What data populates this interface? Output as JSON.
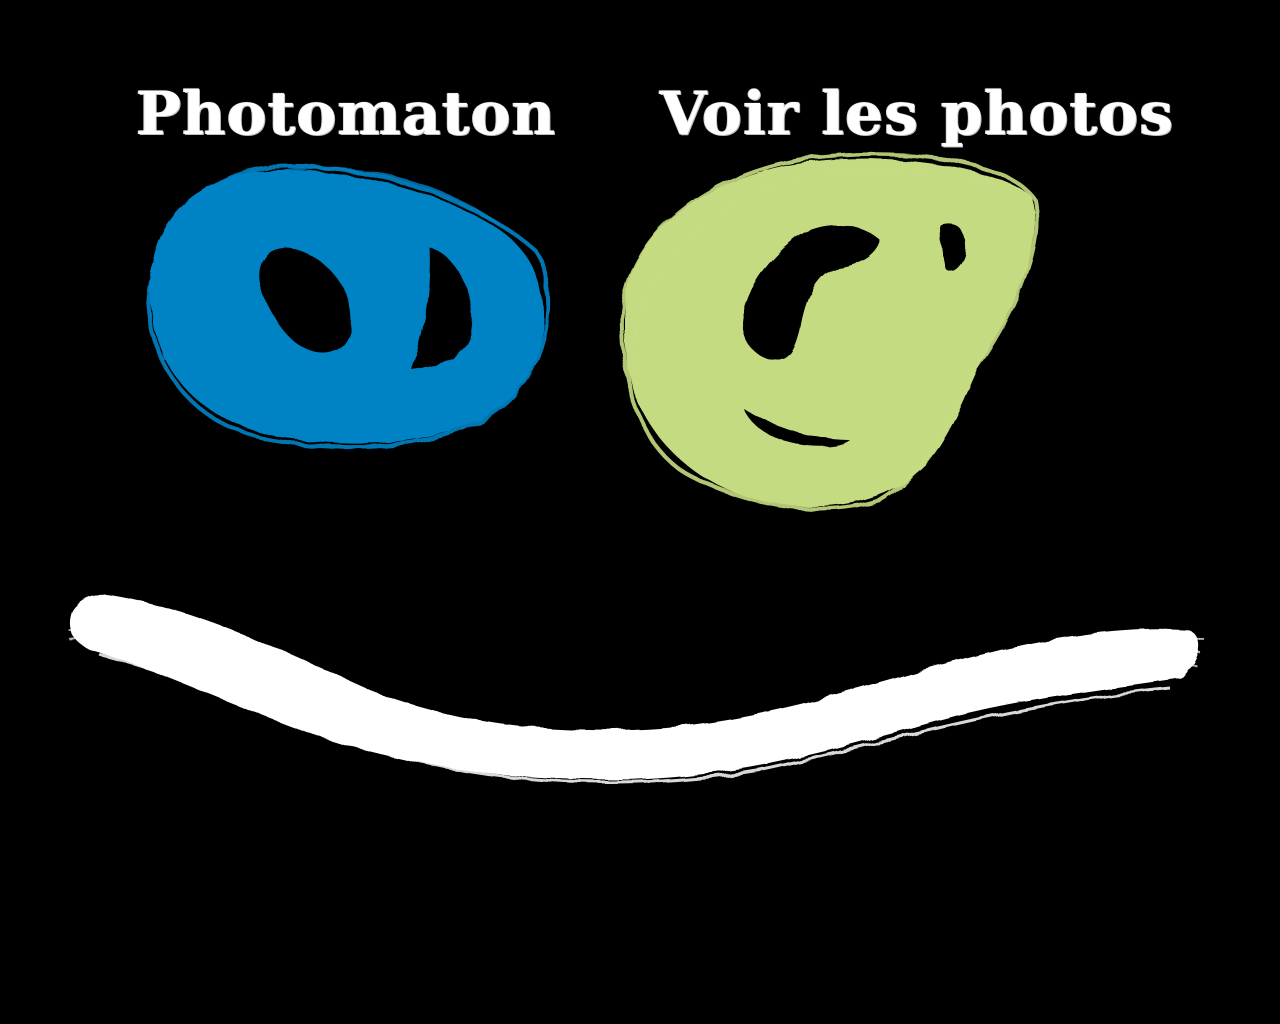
{
  "buttons": {
    "photobooth": {
      "label": "Photomaton",
      "icon": "blue-scribble-ring-icon",
      "color": "#0083c5"
    },
    "view_photos": {
      "label": "Voir les photos",
      "icon": "green-scribble-ring-icon",
      "color": "#c5db82"
    }
  },
  "decor": {
    "smile_stroke_color": "#ffffff",
    "background": "#000000"
  }
}
